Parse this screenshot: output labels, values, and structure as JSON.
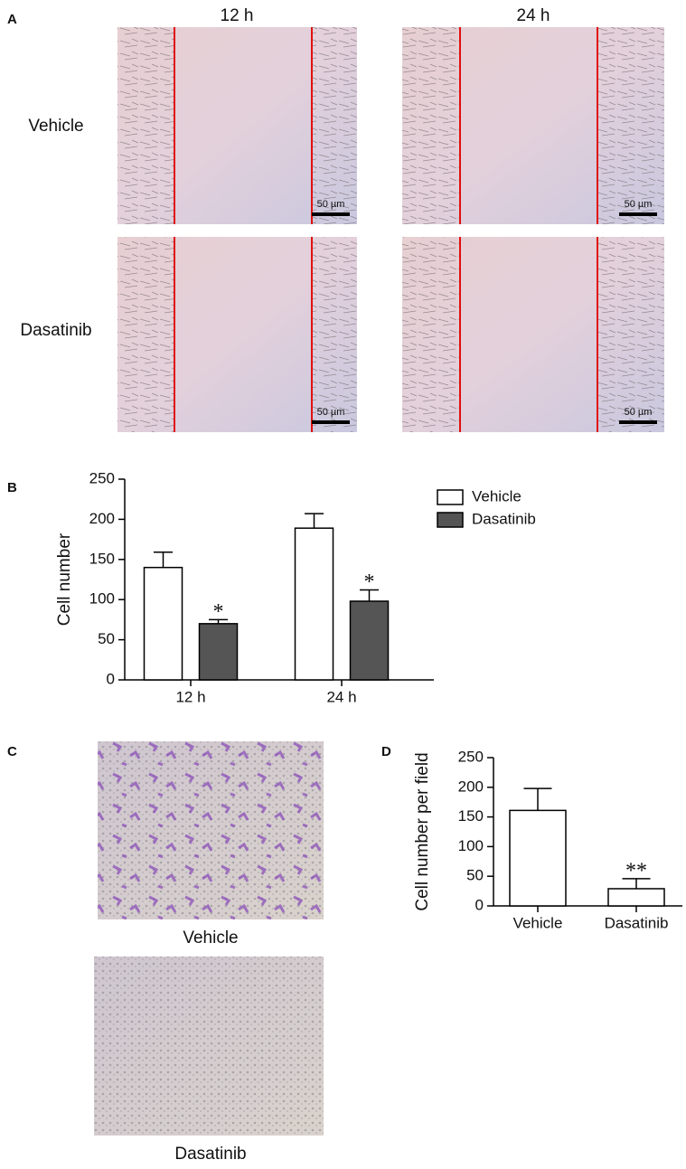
{
  "panel_a": {
    "label": "A",
    "columns": [
      "12 h",
      "24 h"
    ],
    "rows": [
      "Vehicle",
      "Dasatinib"
    ],
    "scale_bar": "50 µm"
  },
  "panel_c": {
    "label": "C",
    "images": [
      "Vehicle",
      "Dasatinib"
    ]
  },
  "chart_data": [
    {
      "panel": "B",
      "type": "bar",
      "y_label": "Cell number",
      "categories": [
        "12 h",
        "24 h"
      ],
      "series": [
        {
          "name": "Vehicle",
          "color": "#ffffff",
          "values": [
            140,
            189
          ],
          "errors": [
            19,
            18
          ]
        },
        {
          "name": "Dasatinib",
          "color": "#555555",
          "values": [
            70,
            98
          ],
          "errors": [
            5,
            14
          ],
          "significance": [
            "*",
            "*"
          ]
        }
      ],
      "ylim": [
        0,
        250
      ],
      "yticks": [
        0,
        50,
        100,
        150,
        200,
        250
      ],
      "legend": "top-right"
    },
    {
      "panel": "D",
      "type": "bar",
      "y_label": "Cell number per field",
      "categories": [
        "Vehicle",
        "Dasatinib"
      ],
      "series": [
        {
          "color": "#ffffff",
          "values": [
            161,
            29
          ],
          "errors": [
            37,
            17
          ],
          "significance": [
            null,
            "**"
          ]
        }
      ],
      "ylim": [
        0,
        250
      ],
      "yticks": [
        0,
        50,
        100,
        150,
        200,
        250
      ]
    }
  ]
}
